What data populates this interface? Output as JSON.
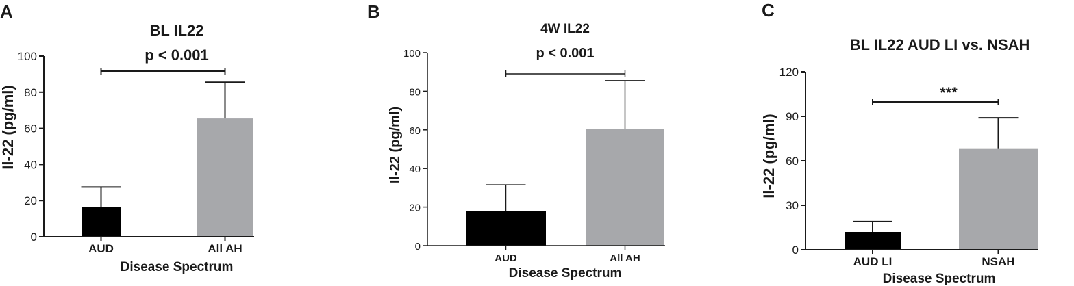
{
  "panels": {
    "a": {
      "letter": "A"
    },
    "b": {
      "letter": "B"
    },
    "c": {
      "letter": "C"
    }
  },
  "chart_data": [
    {
      "type": "bar",
      "title": "BL IL22",
      "xlabel": "Disease Spectrum",
      "ylabel": "Il-22 (pg/ml)",
      "ylim": [
        0,
        100
      ],
      "yticks": [
        "0",
        "20",
        "40",
        "60",
        "80",
        "100"
      ],
      "categories": [
        "AUD",
        "All AH"
      ],
      "values": [
        16.5,
        65.5
      ],
      "errors": [
        11,
        20
      ],
      "colors": [
        "#000000",
        "#a7a8ab"
      ],
      "significance": "p < 0.001"
    },
    {
      "type": "bar",
      "title": "4W IL22",
      "xlabel": "Disease Spectrum",
      "ylabel": "Il-22 (pg/ml)",
      "ylim": [
        0,
        100
      ],
      "yticks": [
        "0",
        "20",
        "40",
        "60",
        "80",
        "100"
      ],
      "categories": [
        "AUD",
        "All AH"
      ],
      "values": [
        18,
        60.5
      ],
      "errors": [
        13.5,
        25
      ],
      "colors": [
        "#000000",
        "#a7a8ab"
      ],
      "significance": "p < 0.001"
    },
    {
      "type": "bar",
      "title": "BL IL22 AUD LI vs. NSAH",
      "xlabel": "Disease Spectrum",
      "ylabel": "Il-22 (pg/ml)",
      "ylim": [
        0,
        120
      ],
      "yticks": [
        "0",
        "30",
        "60",
        "90",
        "120"
      ],
      "categories": [
        "AUD LI",
        "NSAH"
      ],
      "values": [
        12,
        68
      ],
      "errors": [
        7,
        21
      ],
      "colors": [
        "#000000",
        "#a7a8ab"
      ],
      "significance": "***"
    }
  ]
}
